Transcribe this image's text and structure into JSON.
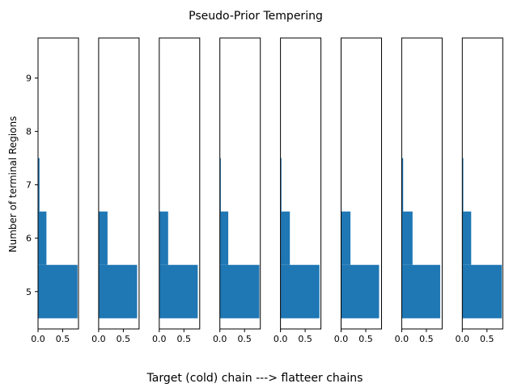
{
  "chart_data": {
    "type": "bar",
    "orientation": "horizontal",
    "title": "Pseudo-Prior Tempering",
    "xlabel": "Target (cold) chain ---> flatteer chains",
    "ylabel": "Number of terminal Regions",
    "ylim": [
      4.3,
      9.75
    ],
    "xlim": [
      0,
      0.82
    ],
    "yticks": [
      5,
      6,
      7,
      8,
      9
    ],
    "xticks": [
      0.0,
      0.5
    ],
    "ytick_labels": [
      "5",
      "6",
      "7",
      "8",
      "9"
    ],
    "xtick_labels": [
      "0.0",
      "0.5"
    ],
    "categories": [
      5,
      6,
      7
    ],
    "grid": false,
    "color": "#1f77b4",
    "panels": [
      {
        "values": [
          0.8,
          0.17,
          0.03
        ]
      },
      {
        "values": [
          0.78,
          0.18,
          0.0
        ]
      },
      {
        "values": [
          0.78,
          0.18,
          0.0
        ]
      },
      {
        "values": [
          0.8,
          0.17,
          0.02
        ]
      },
      {
        "values": [
          0.79,
          0.19,
          0.02
        ]
      },
      {
        "values": [
          0.77,
          0.19,
          0.0
        ]
      },
      {
        "values": [
          0.78,
          0.22,
          0.03
        ]
      },
      {
        "values": [
          0.8,
          0.18,
          0.02
        ]
      }
    ]
  }
}
